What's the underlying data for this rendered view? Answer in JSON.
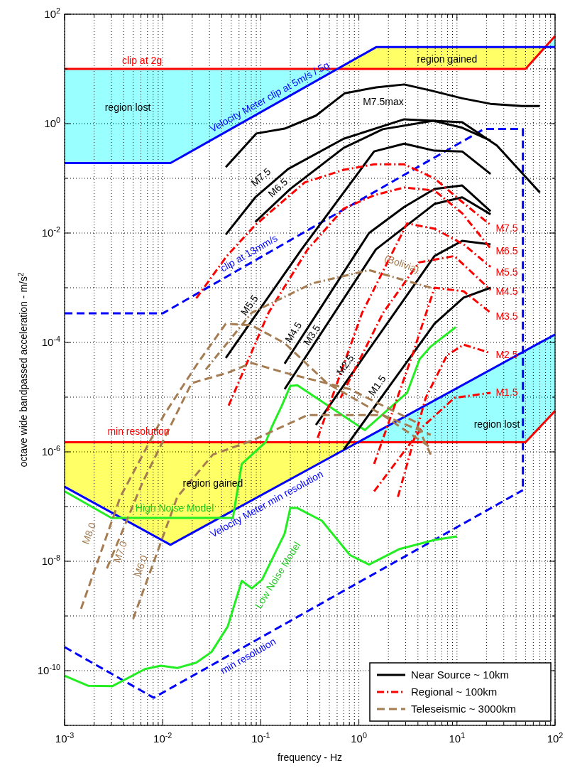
{
  "chart_data": {
    "type": "line",
    "log": "xy",
    "grid": true,
    "legend": "bottom right",
    "xlabel": "frequency  -  Hz",
    "ylabel": "octave wide bandpassed acceleration  -  m/s$^{2}$",
    "xlim": [
      0.001,
      100
    ],
    "ylim": [
      1e-11,
      100
    ],
    "xticks": [
      {
        "value": 0.001,
        "label": "10$^{-3}$"
      },
      {
        "value": 0.002,
        "label": null
      },
      {
        "value": 0.003,
        "label": null
      },
      {
        "value": 0.004,
        "label": null
      },
      {
        "value": 0.005,
        "label": null
      },
      {
        "value": 0.006,
        "label": null
      },
      {
        "value": 0.007,
        "label": null
      },
      {
        "value": 0.008,
        "label": null
      },
      {
        "value": 0.009,
        "label": null
      },
      {
        "value": 0.01,
        "label": "10$^{-2}$"
      },
      {
        "value": 0.02,
        "label": null
      },
      {
        "value": 0.03,
        "label": null
      },
      {
        "value": 0.04,
        "label": null
      },
      {
        "value": 0.05,
        "label": null
      },
      {
        "value": 0.06,
        "label": null
      },
      {
        "value": 0.07,
        "label": null
      },
      {
        "value": 0.08,
        "label": null
      },
      {
        "value": 0.09,
        "label": null
      },
      {
        "value": 0.1,
        "label": "10$^{-1}$"
      },
      {
        "value": 0.2,
        "label": null
      },
      {
        "value": 0.3,
        "label": null
      },
      {
        "value": 0.4,
        "label": null
      },
      {
        "value": 0.5,
        "label": null
      },
      {
        "value": 0.6,
        "label": null
      },
      {
        "value": 0.7,
        "label": null
      },
      {
        "value": 0.8,
        "label": null
      },
      {
        "value": 0.9,
        "label": null
      },
      {
        "value": 1,
        "label": "10$^{0}$"
      },
      {
        "value": 2,
        "label": null
      },
      {
        "value": 3,
        "label": null
      },
      {
        "value": 4,
        "label": null
      },
      {
        "value": 5,
        "label": null
      },
      {
        "value": 6,
        "label": null
      },
      {
        "value": 7,
        "label": null
      },
      {
        "value": 8,
        "label": null
      },
      {
        "value": 9,
        "label": null
      },
      {
        "value": 10,
        "label": "10$^{1}$"
      },
      {
        "value": 20,
        "label": null
      },
      {
        "value": 30,
        "label": null
      },
      {
        "value": 40,
        "label": null
      },
      {
        "value": 50,
        "label": null
      },
      {
        "value": 60,
        "label": null
      },
      {
        "value": 70,
        "label": null
      },
      {
        "value": 80,
        "label": null
      },
      {
        "value": 90,
        "label": null
      },
      {
        "value": 100,
        "label": "10$^{2}$"
      }
    ],
    "yticks": [
      {
        "value": 1e-11,
        "label": null
      },
      {
        "value": 1e-10,
        "label": "10$^{-10}$"
      },
      {
        "value": 1e-09,
        "label": null
      },
      {
        "value": 1e-08,
        "label": "10$^{-8}$"
      },
      {
        "value": 1e-07,
        "label": null
      },
      {
        "value": 1e-06,
        "label": "10$^{-6}$"
      },
      {
        "value": 1e-05,
        "label": null
      },
      {
        "value": 0.0001,
        "label": "10$^{-4}$"
      },
      {
        "value": 0.001,
        "label": null
      },
      {
        "value": 0.01,
        "label": "10$^{-2}$"
      },
      {
        "value": 0.1,
        "label": null
      },
      {
        "value": 1,
        "label": "10$^{0}$"
      },
      {
        "value": 10,
        "label": null
      },
      {
        "value": 100,
        "label": "10$^{2}$"
      }
    ],
    "series": [
      {
        "color": "#ff0000",
        "line_style": "solid",
        "x": [
          0.001,
          50,
          100
        ],
        "values": [
          10,
          10,
          40
        ]
      },
      {
        "color": "#0000ff",
        "line_style": "solid",
        "x": [
          0.001,
          0.012,
          1.5,
          100
        ],
        "values": [
          0.19,
          0.19,
          25,
          25
        ]
      },
      {
        "color": "#0000ff",
        "line_style": "dashed",
        "x": [
          0.001,
          0.01,
          19,
          47,
          47
        ],
        "values": [
          0.00034,
          0.00034,
          0.8,
          0.8,
          2e-07
        ]
      },
      {
        "color": "#ff0000",
        "line_style": "solid",
        "x": [
          0.001,
          50,
          100
        ],
        "values": [
          1.5e-06,
          1.5e-06,
          5.6e-06
        ]
      },
      {
        "color": "#0000ff",
        "line_style": "solid",
        "x": [
          0.001,
          0.012,
          100
        ],
        "values": [
          2.3e-07,
          2e-08,
          0.00014
        ]
      },
      {
        "color": "#0000ff",
        "line_style": "dashed",
        "x": [
          0.001,
          0.0081,
          47
        ],
        "values": [
          2.7e-10,
          3.2e-11,
          2e-07
        ]
      },
      {
        "color": "#22ee22",
        "line_style": "solid",
        "x": [
          0.001,
          0.003,
          0.052,
          0.064,
          0.112,
          0.13,
          0.164,
          0.2,
          0.236,
          1.15,
          3.1,
          4.15,
          5.4,
          9.7
        ],
        "values": [
          1.9e-07,
          6.2e-08,
          6.2e-08,
          6e-07,
          1.5e-06,
          2.9e-06,
          7e-06,
          1.6e-05,
          1.65e-05,
          2.5e-06,
          1.2e-05,
          4.9e-05,
          8.4e-05,
          0.00019
        ]
      },
      {
        "color": "#22ee22",
        "line_style": "solid",
        "x": [
          0.001,
          0.00173,
          0.00306,
          0.0066,
          0.0096,
          0.0141,
          0.022,
          0.0315,
          0.046,
          0.064,
          0.081,
          0.103,
          0.175,
          0.2,
          0.236,
          0.42,
          0.81,
          1.27,
          2.56,
          5.9,
          10
        ],
        "values": [
          8.1e-11,
          5.3e-11,
          5.2e-11,
          1.07e-10,
          1.23e-10,
          1.12e-10,
          1.4e-10,
          2.2e-10,
          6.4e-10,
          4.4e-09,
          3.2e-09,
          4.6e-09,
          3.2e-08,
          9.4e-08,
          9.4e-08,
          5.5e-08,
          1.3e-08,
          8.7e-09,
          1.66e-08,
          2.45e-08,
          2.85e-08
        ]
      },
      {
        "name": "Near Source ~ 10km",
        "color": "#000000",
        "line_style": "solid",
        "x": [
          0.044,
          0.09,
          0.175,
          0.365,
          0.72,
          1.5,
          2.9,
          5.5,
          11.3,
          22,
          46,
          70
        ],
        "values": [
          0.16,
          0.66,
          0.81,
          1.4,
          3.6,
          4.6,
          5.2,
          4.0,
          2.9,
          2.3,
          2.1,
          2.1
        ]
      },
      {
        "color": "#000000",
        "line_style": "solid",
        "x": [
          0.044,
          0.088,
          0.19,
          0.7,
          2.9,
          11.3,
          25.5,
          70
        ],
        "values": [
          0.0094,
          0.045,
          0.148,
          0.53,
          1.2,
          1.06,
          0.4,
          0.055
        ]
      },
      {
        "color": "#000000",
        "line_style": "solid",
        "x": [
          0.088,
          0.2,
          0.7,
          1.75,
          5.7,
          11.3,
          22
        ],
        "values": [
          0.016,
          0.064,
          0.36,
          0.79,
          1.13,
          0.84,
          0.49
        ]
      },
      {
        "color": "#000000",
        "line_style": "solid",
        "x": [
          0.044,
          0.26,
          1.43,
          2.9,
          5.9,
          11.3,
          22
        ],
        "values": [
          5.2e-05,
          0.005,
          0.31,
          0.43,
          0.32,
          0.31,
          0.12
        ]
      },
      {
        "color": "#000000",
        "line_style": "solid",
        "x": [
          0.175,
          1.27,
          2.9,
          5.9,
          11.3,
          22
        ],
        "values": [
          4.1e-05,
          0.01,
          0.03,
          0.064,
          0.074,
          0.025
        ]
      },
      {
        "color": "#000000",
        "line_style": "solid",
        "x": [
          0.175,
          1.49,
          5.9,
          11.3,
          22
        ],
        "values": [
          1.4e-05,
          0.005,
          0.034,
          0.045,
          0.022
        ]
      },
      {
        "color": "#000000",
        "line_style": "solid",
        "x": [
          0.365,
          5.9,
          11.3,
          22
        ],
        "values": [
          3.1e-06,
          0.0038,
          0.0072,
          0.0062
        ]
      },
      {
        "color": "#000000",
        "line_style": "solid",
        "x": [
          0.7,
          5.9,
          11.7,
          22
        ],
        "values": [
          1.1e-06,
          0.00022,
          0.00066,
          0.001
        ]
      },
      {
        "name": "Regional ~ 100km",
        "color": "#ff0000",
        "line_style": "dashdot",
        "x": [
          0.022,
          0.045,
          0.088,
          0.28,
          0.7,
          1.43,
          2.9,
          5.9,
          11.3,
          22
        ],
        "values": [
          0.00064,
          0.0038,
          0.014,
          0.084,
          0.143,
          0.18,
          0.18,
          0.1,
          0.037,
          0.014
        ]
      },
      {
        "color": "#ff0000",
        "line_style": "dashdot",
        "x": [
          0.047,
          0.12,
          0.3,
          0.7,
          1.43,
          2.9,
          5.9,
          11.3,
          22
        ],
        "values": [
          7e-06,
          0.00035,
          0.005,
          0.028,
          0.049,
          0.068,
          0.06,
          0.023,
          0.0052
        ]
      },
      {
        "color": "#ff0000",
        "line_style": "dashdot",
        "x": [
          0.38,
          1.08,
          3.1,
          5.9,
          11.7,
          22
        ],
        "values": [
          1.8e-06,
          0.00035,
          0.015,
          0.012,
          0.0062,
          0.0024
        ]
      },
      {
        "color": "#ff0000",
        "line_style": "dashdot",
        "x": [
          0.65,
          1.77,
          4.1,
          9.4,
          22
        ],
        "values": [
          9.7e-06,
          0.00035,
          0.0029,
          0.0038,
          0.00091
        ]
      },
      {
        "color": "#ff0000",
        "line_style": "dashdot",
        "x": [
          1.43,
          3.5,
          5.9,
          11.7,
          22
        ],
        "values": [
          6e-07,
          5.8e-05,
          0.001,
          0.00086,
          0.00035
        ]
      },
      {
        "color": "#ff0000",
        "line_style": "dashdot",
        "x": [
          2.5,
          4.8,
          7.9,
          11.7,
          22
        ],
        "values": [
          1.5e-07,
          9.7e-06,
          5.8e-05,
          9.1e-05,
          6.4e-05
        ]
      },
      {
        "color": "#ff0000",
        "line_style": "dashdot",
        "x": [
          1.43,
          4.5,
          9.4,
          22
        ],
        "values": [
          1.9e-07,
          2.9e-06,
          9.7e-06,
          1.2e-05
        ]
      },
      {
        "name": "Teleseismic ~ 3000km",
        "color": "#a67c52",
        "line_style": "dashed",
        "x": [
          0.00147,
          0.0037,
          0.0103,
          0.023,
          0.044,
          0.081,
          0.175,
          0.475,
          1.75,
          5.4
        ],
        "values": [
          1.35e-09,
          1.5e-07,
          4.7e-06,
          4.3e-05,
          0.00022,
          0.000205,
          9.7e-05,
          1.8e-05,
          4.7e-06,
          1.2e-06
        ]
      },
      {
        "color": "#a67c52",
        "line_style": "dashed",
        "x": [
          0.0027,
          0.0062,
          0.0197,
          0.046,
          0.081,
          0.175,
          0.81,
          3.8,
          5.4
        ],
        "values": [
          7.4e-09,
          2.7e-07,
          1.8e-05,
          2.8e-05,
          4.2e-05,
          2.8e-05,
          1.4e-05,
          3.5e-06,
          8.9e-07
        ]
      },
      {
        "color": "#a67c52",
        "line_style": "dashed",
        "x": [
          0.005,
          0.0141,
          0.0325,
          0.081,
          0.3,
          1.75,
          5.4
        ],
        "values": [
          8.9e-10,
          1.5e-07,
          8.9e-07,
          1.6e-06,
          4.7e-06,
          4.7e-06,
          2.05e-06
        ]
      },
      {
        "color": "#a67c52",
        "line_style": "dashdot",
        "x": [
          0.0275,
          0.081,
          0.335,
          1.27,
          5.4
        ],
        "values": [
          3.2e-05,
          0.00035,
          0.0012,
          0.0021,
          0.001
        ]
      }
    ],
    "annotations": [
      "clip at 2g",
      "Velocity Meter clip at 5m/s / 5g",
      "clip at 13mm/s",
      "min resolution",
      "Velocity Meter min resolution",
      "min resolution",
      "High Noise Model",
      "Low Noise Model",
      "region lost",
      "region gained",
      "region lost",
      "region gained",
      "M7.5max",
      "M7.5",
      "M6.5",
      "M5.5",
      "M4.5",
      "M3.5",
      "M2.5",
      "M1.5",
      "M7.5",
      "M6.5",
      "M5.5",
      "M4.5",
      "M3.5",
      "M2.5",
      "M1.5",
      "M8.0",
      "M7.0",
      "M6.0",
      "(Bolivia)"
    ]
  }
}
